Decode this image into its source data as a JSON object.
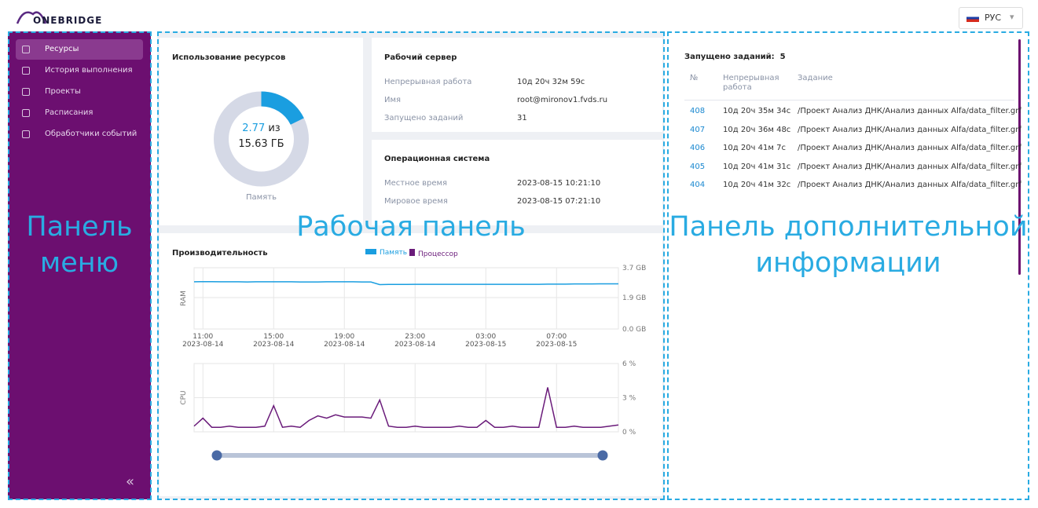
{
  "header": {
    "logo": "ONEBRIDGE",
    "language": "РУС"
  },
  "menu": {
    "items": [
      "Ресурсы",
      "История выполнения",
      "Проекты",
      "Расписания",
      "Обработчики событий"
    ],
    "active": 0
  },
  "resources": {
    "title": "Использование ресурсов",
    "used": 2.77,
    "of": "из",
    "total": 15.63,
    "unit": "ГБ",
    "label": "Память"
  },
  "server": {
    "title": "Рабочий сервер",
    "rows": [
      [
        "Непрерывная работа",
        "10д 20ч 32м 59с"
      ],
      [
        "Имя",
        "root@mironov1.fvds.ru"
      ],
      [
        "Запущено заданий",
        "31"
      ]
    ]
  },
  "os": {
    "title": "Операционная система",
    "rows": [
      [
        "Местное время",
        "2023-08-15 10:21:10"
      ],
      [
        "Мировое время",
        "2023-08-15 07:21:10"
      ]
    ]
  },
  "performance": {
    "title": "Производительность"
  },
  "chart_data": [
    {
      "type": "line",
      "ylabel": "RAM",
      "x": [
        "2023-08-14 10:30",
        "2023-08-14 11:00",
        "2023-08-14 11:30",
        "2023-08-14 12:00",
        "2023-08-14 12:30",
        "2023-08-14 13:00",
        "2023-08-14 13:30",
        "2023-08-14 14:00",
        "2023-08-14 14:30",
        "2023-08-14 15:00",
        "2023-08-14 15:30",
        "2023-08-14 16:00",
        "2023-08-14 16:30",
        "2023-08-14 17:00",
        "2023-08-14 17:30",
        "2023-08-14 18:00",
        "2023-08-14 18:30",
        "2023-08-14 19:00",
        "2023-08-14 19:30",
        "2023-08-14 20:00",
        "2023-08-14 20:30",
        "2023-08-14 21:00",
        "2023-08-14 21:30",
        "2023-08-14 22:00",
        "2023-08-14 22:30",
        "2023-08-14 23:00",
        "2023-08-14 23:30",
        "2023-08-15 00:00",
        "2023-08-15 00:30",
        "2023-08-15 01:00",
        "2023-08-15 01:30",
        "2023-08-15 02:00",
        "2023-08-15 02:30",
        "2023-08-15 03:00",
        "2023-08-15 03:30",
        "2023-08-15 04:00",
        "2023-08-15 04:30",
        "2023-08-15 05:00",
        "2023-08-15 05:30",
        "2023-08-15 06:00",
        "2023-08-15 06:30",
        "2023-08-15 07:00",
        "2023-08-15 07:30",
        "2023-08-15 08:00",
        "2023-08-15 08:30",
        "2023-08-15 09:00",
        "2023-08-15 09:30",
        "2023-08-15 10:00",
        "2023-08-15 10:30"
      ],
      "series": [
        {
          "name": "Память",
          "color": "#1a9ee0",
          "values": [
            2.85,
            2.86,
            2.86,
            2.85,
            2.85,
            2.85,
            2.84,
            2.85,
            2.85,
            2.85,
            2.85,
            2.85,
            2.84,
            2.84,
            2.84,
            2.85,
            2.85,
            2.85,
            2.85,
            2.84,
            2.84,
            2.68,
            2.69,
            2.69,
            2.69,
            2.7,
            2.7,
            2.7,
            2.7,
            2.7,
            2.7,
            2.7,
            2.7,
            2.7,
            2.7,
            2.7,
            2.7,
            2.7,
            2.7,
            2.7,
            2.71,
            2.71,
            2.71,
            2.72,
            2.72,
            2.72,
            2.73,
            2.73,
            2.73
          ]
        }
      ],
      "xlim": [
        "2023-08-14 10:30",
        "2023-08-15 10:30"
      ],
      "xticks": [
        {
          "value": "2023-08-14 11:00",
          "label": "11:00\n2023-08-14"
        },
        {
          "value": "2023-08-14 15:00",
          "label": "15:00\n2023-08-14"
        },
        {
          "value": "2023-08-14 19:00",
          "label": "19:00\n2023-08-14"
        },
        {
          "value": "2023-08-14 23:00",
          "label": "23:00\n2023-08-14"
        },
        {
          "value": "2023-08-15 03:00",
          "label": "03:00\n2023-08-15"
        },
        {
          "value": "2023-08-15 07:00",
          "label": "07:00\n2023-08-15"
        }
      ],
      "ylim": [
        0,
        3.7
      ],
      "yticks": [
        {
          "value": 0,
          "label": "0.0 GB"
        },
        {
          "value": 1.9,
          "label": "1.9 GB"
        },
        {
          "value": 3.7,
          "label": "3.7 GB"
        }
      ],
      "grid": true
    },
    {
      "type": "line",
      "ylabel": "CPU",
      "x": [
        "2023-08-14 10:30",
        "2023-08-14 11:00",
        "2023-08-14 11:30",
        "2023-08-14 12:00",
        "2023-08-14 12:30",
        "2023-08-14 13:00",
        "2023-08-14 13:30",
        "2023-08-14 14:00",
        "2023-08-14 14:30",
        "2023-08-14 15:00",
        "2023-08-14 15:30",
        "2023-08-14 16:00",
        "2023-08-14 16:30",
        "2023-08-14 17:00",
        "2023-08-14 17:30",
        "2023-08-14 18:00",
        "2023-08-14 18:30",
        "2023-08-14 19:00",
        "2023-08-14 19:30",
        "2023-08-14 20:00",
        "2023-08-14 20:30",
        "2023-08-14 21:00",
        "2023-08-14 21:30",
        "2023-08-14 22:00",
        "2023-08-14 22:30",
        "2023-08-14 23:00",
        "2023-08-14 23:30",
        "2023-08-15 00:00",
        "2023-08-15 00:30",
        "2023-08-15 01:00",
        "2023-08-15 01:30",
        "2023-08-15 02:00",
        "2023-08-15 02:30",
        "2023-08-15 03:00",
        "2023-08-15 03:30",
        "2023-08-15 04:00",
        "2023-08-15 04:30",
        "2023-08-15 05:00",
        "2023-08-15 05:30",
        "2023-08-15 06:00",
        "2023-08-15 06:30",
        "2023-08-15 07:00",
        "2023-08-15 07:30",
        "2023-08-15 08:00",
        "2023-08-15 08:30",
        "2023-08-15 09:00",
        "2023-08-15 09:30",
        "2023-08-15 10:00",
        "2023-08-15 10:30"
      ],
      "series": [
        {
          "name": "Процессор",
          "color": "#6a1b7a",
          "values": [
            0.5,
            1.2,
            0.4,
            0.4,
            0.5,
            0.4,
            0.4,
            0.4,
            0.5,
            2.3,
            0.4,
            0.5,
            0.4,
            1.0,
            1.4,
            1.2,
            1.5,
            1.3,
            1.3,
            1.3,
            1.2,
            2.8,
            0.5,
            0.4,
            0.4,
            0.5,
            0.4,
            0.4,
            0.4,
            0.4,
            0.5,
            0.4,
            0.4,
            1.0,
            0.4,
            0.4,
            0.5,
            0.4,
            0.4,
            0.4,
            3.9,
            0.4,
            0.4,
            0.5,
            0.4,
            0.4,
            0.4,
            0.5,
            0.6
          ]
        }
      ],
      "xlim": [
        "2023-08-14 10:30",
        "2023-08-15 10:30"
      ],
      "gridx": [
        "2023-08-14 11:00",
        "2023-08-14 15:00",
        "2023-08-14 19:00",
        "2023-08-14 23:00",
        "2023-08-15 03:00",
        "2023-08-15 07:00"
      ],
      "ylim": [
        0,
        6
      ],
      "yticks": [
        {
          "value": 0,
          "label": "0 %"
        },
        {
          "value": 3,
          "label": "3 %"
        },
        {
          "value": 6,
          "label": "6 %"
        }
      ],
      "grid": true
    }
  ],
  "jobs": {
    "title": "Запущено заданий:",
    "count": 5,
    "columns": [
      "№",
      "Непрерывная\nработа",
      "Задание"
    ],
    "rows": [
      [
        "408",
        "10д 20ч 35м 34с",
        "/Проект Анализ ДНК/Анализ данных Alfa/data_filter.grf"
      ],
      [
        "407",
        "10д 20ч 36м 48с",
        "/Проект Анализ ДНК/Анализ данных Alfa/data_filter.grf"
      ],
      [
        "406",
        "10д 20ч 41м 7с",
        "/Проект Анализ ДНК/Анализ данных Alfa/data_filter.grf"
      ],
      [
        "405",
        "10д 20ч 41м 31с",
        "/Проект Анализ ДНК/Анализ данных Alfa/data_filter.grf"
      ],
      [
        "404",
        "10д 20ч 41м 32с",
        "/Проект Анализ ДНК/Анализ данных Alfa/data_filter.grf"
      ]
    ]
  },
  "annotations": [
    "Панель\nменю",
    "Рабочая панель",
    "Панель дополнительной\nинформации"
  ]
}
